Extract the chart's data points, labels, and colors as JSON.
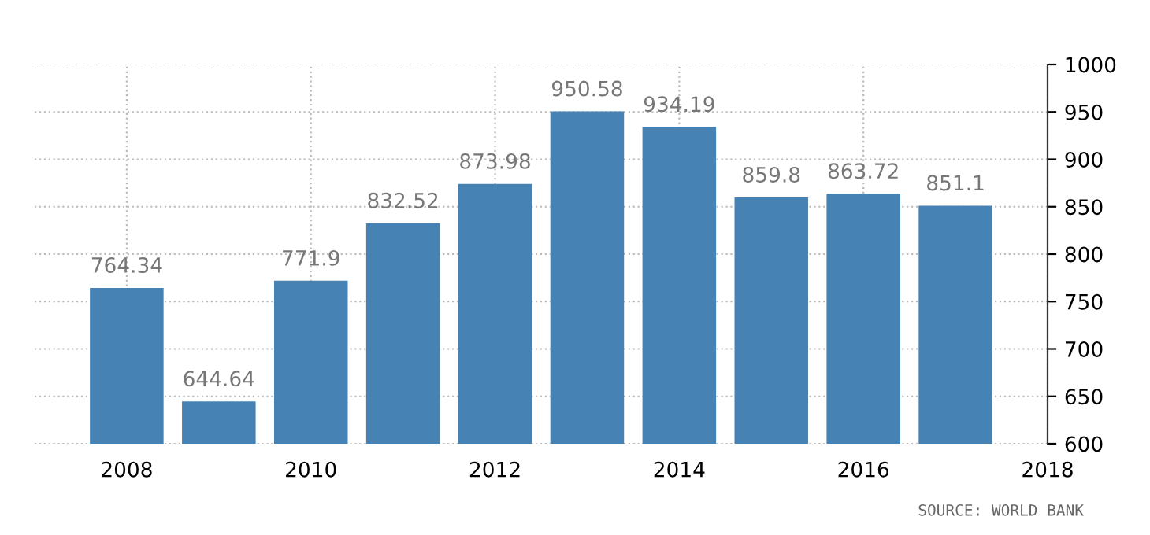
{
  "chart_data": {
    "type": "bar",
    "x": [
      2008,
      2009,
      2010,
      2011,
      2012,
      2013,
      2014,
      2015,
      2016,
      2017
    ],
    "values": [
      764.34,
      644.64,
      771.9,
      832.52,
      873.98,
      950.58,
      934.19,
      859.8,
      863.72,
      851.1
    ],
    "color": "#4682b4",
    "xlim": [
      2007,
      2018
    ],
    "xticks": [
      2008,
      2010,
      2012,
      2014,
      2016,
      2018
    ],
    "ylim": [
      600,
      1000
    ],
    "yticks": [
      600,
      650,
      700,
      750,
      800,
      850,
      900,
      950,
      1000
    ],
    "grid": true,
    "data_labels": true,
    "line_style": "dotted",
    "annotations": [
      "SOURCE: WORLD BANK"
    ]
  }
}
